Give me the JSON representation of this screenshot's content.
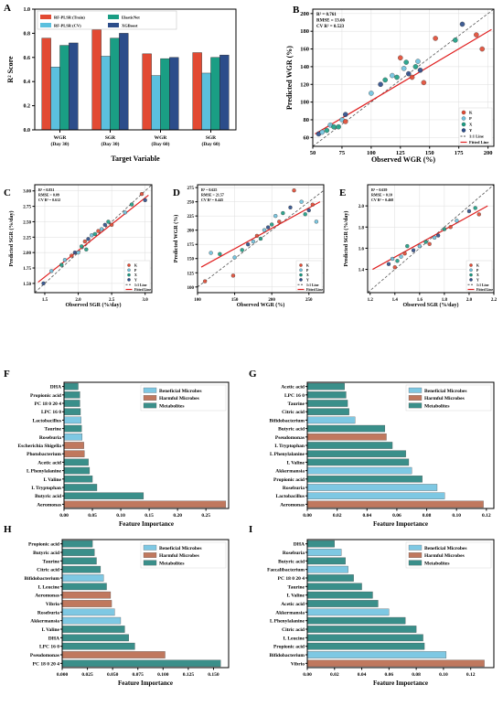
{
  "colors": {
    "rf_train": "#e24a33",
    "rf_cv": "#5bc0de",
    "elastic": "#1a9e84",
    "xgb": "#2c4d8a",
    "beneficial": "#7ec8e3",
    "harmful": "#c0785e",
    "metabolites": "#3a8f8a",
    "fit_line": "#e02020",
    "one_to_one": "#555555",
    "pt_K": "#e24a33",
    "pt_P": "#6fc3df",
    "pt_X": "#1a9e84",
    "pt_Y": "#2c4d8a"
  },
  "chart_data": [
    {
      "panel": "A",
      "type": "bar",
      "xlabel": "Target Variable",
      "ylabel": "R² Score",
      "ylim": [
        0,
        1.0
      ],
      "yticks": [
        "0.0",
        "0.2",
        "0.4",
        "0.6",
        "0.8",
        "1.0"
      ],
      "categories": [
        "WGR\n(Day 30)",
        "SGR\n(Day 30)",
        "WGR\n(Day 60)",
        "SGR\n(Day 60)"
      ],
      "category_lines": [
        [
          "WGR",
          "(Day 30)"
        ],
        [
          "SGR",
          "(Day 30)"
        ],
        [
          "WGR",
          "(Day 60)"
        ],
        [
          "SGR",
          "(Day 60)"
        ]
      ],
      "series": [
        {
          "name": "RF-PLSR (Train)",
          "values": [
            0.76,
            0.83,
            0.63,
            0.64
          ]
        },
        {
          "name": "RF-PLSR (CV)",
          "values": [
            0.52,
            0.61,
            0.45,
            0.47
          ]
        },
        {
          "name": "ElasticNet",
          "values": [
            0.7,
            0.76,
            0.59,
            0.6
          ]
        },
        {
          "name": "XGBoost",
          "values": [
            0.72,
            0.8,
            0.6,
            0.62
          ]
        }
      ]
    },
    {
      "panel": "B",
      "type": "scatter",
      "xlabel": "Observed WGR (%)",
      "ylabel": "Predicted WGR (%)",
      "xlim": [
        50,
        205
      ],
      "ylim": [
        50,
        205
      ],
      "xticks": [
        50,
        75,
        100,
        125,
        150,
        175,
        200
      ],
      "yticks": [
        60,
        80,
        100,
        120,
        140,
        160,
        180,
        200
      ],
      "stats": [
        "R² = 0.761",
        "RMSE = 13.66",
        "CV R² = 0.523"
      ],
      "legend": [
        "K",
        "P",
        "X",
        "Y",
        "1:1 Line",
        "Fitted Line"
      ],
      "fit": [
        [
          52,
          64
        ],
        [
          203,
          182
        ]
      ],
      "points": [
        [
          55,
          64,
          "Y"
        ],
        [
          58,
          66,
          "P"
        ],
        [
          62,
          68,
          "X"
        ],
        [
          65,
          74,
          "P"
        ],
        [
          68,
          72,
          "X"
        ],
        [
          72,
          72,
          "X"
        ],
        [
          75,
          80,
          "P"
        ],
        [
          78,
          86,
          "Y"
        ],
        [
          78,
          78,
          "K"
        ],
        [
          100,
          110,
          "P"
        ],
        [
          108,
          120,
          "Y"
        ],
        [
          112,
          125,
          "X"
        ],
        [
          118,
          130,
          "P"
        ],
        [
          122,
          128,
          "X"
        ],
        [
          125,
          150,
          "K"
        ],
        [
          128,
          138,
          "P"
        ],
        [
          130,
          145,
          "X"
        ],
        [
          132,
          132,
          "Y"
        ],
        [
          135,
          128,
          "K"
        ],
        [
          138,
          140,
          "X"
        ],
        [
          140,
          146,
          "P"
        ],
        [
          142,
          136,
          "Y"
        ],
        [
          145,
          122,
          "K"
        ],
        [
          155,
          172,
          "K"
        ],
        [
          172,
          170,
          "X"
        ],
        [
          190,
          176,
          "K"
        ],
        [
          195,
          160,
          "K"
        ],
        [
          178,
          188,
          "Y"
        ]
      ]
    },
    {
      "panel": "C",
      "type": "scatter",
      "xlabel": "Observed SGR (%/day)",
      "ylabel": "Predicted SGR (%/day)",
      "xlim": [
        1.35,
        3.1
      ],
      "ylim": [
        1.35,
        3.1
      ],
      "xticks": [
        "1.5",
        "2.0",
        "2.5",
        "3.0"
      ],
      "yticks": [
        "1.50",
        "1.75",
        "2.00",
        "2.25",
        "2.50",
        "2.75",
        "3.00"
      ],
      "stats": [
        "R² = 0.831",
        "RMSE = 0.09",
        "CV R² = 0.612"
      ],
      "legend": [
        "K",
        "P",
        "X",
        "Y",
        "1:1 Line",
        "Fitted Line"
      ],
      "fit": [
        [
          1.4,
          1.52
        ],
        [
          3.05,
          2.93
        ]
      ],
      "points": [
        [
          1.48,
          1.5,
          "Y"
        ],
        [
          1.6,
          1.7,
          "P"
        ],
        [
          1.75,
          1.8,
          "X"
        ],
        [
          1.8,
          1.88,
          "P"
        ],
        [
          1.9,
          1.95,
          "K"
        ],
        [
          1.95,
          2.0,
          "Y"
        ],
        [
          2.0,
          2.0,
          "P"
        ],
        [
          2.05,
          2.1,
          "X"
        ],
        [
          2.1,
          2.18,
          "K"
        ],
        [
          2.12,
          2.05,
          "X"
        ],
        [
          2.15,
          2.22,
          "Y"
        ],
        [
          2.2,
          2.28,
          "P"
        ],
        [
          2.25,
          2.3,
          "X"
        ],
        [
          2.3,
          2.35,
          "K"
        ],
        [
          2.35,
          2.38,
          "P"
        ],
        [
          2.4,
          2.45,
          "Y"
        ],
        [
          2.45,
          2.5,
          "X"
        ],
        [
          2.5,
          2.45,
          "K"
        ],
        [
          2.7,
          2.65,
          "P"
        ],
        [
          2.8,
          2.78,
          "X"
        ],
        [
          2.95,
          2.95,
          "K"
        ],
        [
          3.0,
          2.85,
          "Y"
        ]
      ]
    },
    {
      "panel": "D",
      "type": "scatter",
      "xlabel": "Observed WGR (%)",
      "ylabel": "Predicted WGR (%)",
      "xlim": [
        100,
        270
      ],
      "ylim": [
        90,
        280
      ],
      "xticks": [
        100,
        150,
        200,
        250
      ],
      "yticks": [
        100,
        125,
        150,
        175,
        200,
        225,
        250,
        275
      ],
      "stats": [
        "R² = 0.625",
        "RMSE = 21.57",
        "CV R² = 0.445"
      ],
      "legend": [
        "K",
        "P",
        "X",
        "Y",
        "1:1 Line",
        "Fitted Line"
      ],
      "fit": [
        [
          105,
          135
        ],
        [
          265,
          250
        ]
      ],
      "points": [
        [
          110,
          110,
          "K"
        ],
        [
          118,
          160,
          "P"
        ],
        [
          130,
          158,
          "X"
        ],
        [
          148,
          120,
          "K"
        ],
        [
          150,
          152,
          "P"
        ],
        [
          160,
          165,
          "X"
        ],
        [
          168,
          175,
          "Y"
        ],
        [
          175,
          180,
          "P"
        ],
        [
          180,
          190,
          "K"
        ],
        [
          185,
          185,
          "X"
        ],
        [
          190,
          200,
          "P"
        ],
        [
          195,
          205,
          "Y"
        ],
        [
          200,
          210,
          "X"
        ],
        [
          205,
          225,
          "P"
        ],
        [
          210,
          215,
          "K"
        ],
        [
          215,
          230,
          "X"
        ],
        [
          225,
          240,
          "Y"
        ],
        [
          230,
          270,
          "K"
        ],
        [
          240,
          250,
          "P"
        ],
        [
          245,
          228,
          "X"
        ],
        [
          250,
          235,
          "Y"
        ],
        [
          255,
          245,
          "K"
        ],
        [
          260,
          215,
          "P"
        ]
      ]
    },
    {
      "panel": "E",
      "type": "scatter",
      "xlabel": "Observed SGR (%/day)",
      "ylabel": "Predicted SGR (%/day)",
      "xlim": [
        1.18,
        2.2
      ],
      "ylim": [
        1.18,
        2.2
      ],
      "xticks": [
        "1.2",
        "1.4",
        "1.6",
        "1.8",
        "2.0",
        "2.2"
      ],
      "yticks": [
        "1.4",
        "1.6",
        "1.8",
        "2.0"
      ],
      "stats": [
        "R² = 0.639",
        "RMSE = 0.10",
        "CV R² = 0.468"
      ],
      "legend": [
        "K",
        "P",
        "X",
        "Y",
        "1:1 Line",
        "Fitted Line"
      ],
      "fit": [
        [
          1.22,
          1.4
        ],
        [
          2.15,
          2.0
        ]
      ],
      "points": [
        [
          1.35,
          1.45,
          "Y"
        ],
        [
          1.38,
          1.5,
          "P"
        ],
        [
          1.4,
          1.42,
          "K"
        ],
        [
          1.42,
          1.48,
          "X"
        ],
        [
          1.45,
          1.52,
          "P"
        ],
        [
          1.48,
          1.55,
          "K"
        ],
        [
          1.5,
          1.62,
          "X"
        ],
        [
          1.55,
          1.58,
          "Y"
        ],
        [
          1.6,
          1.62,
          "P"
        ],
        [
          1.65,
          1.66,
          "X"
        ],
        [
          1.68,
          1.64,
          "K"
        ],
        [
          1.72,
          1.7,
          "P"
        ],
        [
          1.75,
          1.72,
          "Y"
        ],
        [
          1.8,
          1.78,
          "X"
        ],
        [
          1.85,
          1.8,
          "K"
        ],
        [
          1.9,
          1.86,
          "P"
        ],
        [
          2.0,
          1.95,
          "Y"
        ],
        [
          2.05,
          1.98,
          "X"
        ],
        [
          2.08,
          1.92,
          "K"
        ]
      ]
    },
    {
      "panel": "F",
      "type": "bar",
      "orientation": "horizontal",
      "xlabel": "Feature Importance",
      "xlim": [
        0,
        0.29
      ],
      "xticks": [
        "0.00",
        "0.05",
        "0.10",
        "0.15",
        "0.20",
        "0.25"
      ],
      "legend": [
        "Beneficial Microbes",
        "Harmful Microbes",
        "Metabolites"
      ],
      "features": [
        {
          "name": "DHA",
          "value": 0.025,
          "cls": "M"
        },
        {
          "name": "Propionic acid",
          "value": 0.028,
          "cls": "M"
        },
        {
          "name": "PC 18 0 20 4",
          "value": 0.028,
          "cls": "M"
        },
        {
          "name": "LPC 16 0",
          "value": 0.029,
          "cls": "M"
        },
        {
          "name": "Lactobacillus",
          "value": 0.03,
          "cls": "B"
        },
        {
          "name": "Taurine",
          "value": 0.031,
          "cls": "M"
        },
        {
          "name": "Roseburia",
          "value": 0.032,
          "cls": "B"
        },
        {
          "name": "Escherichia Shigella",
          "value": 0.035,
          "cls": "H"
        },
        {
          "name": "Photobacterium",
          "value": 0.036,
          "cls": "H"
        },
        {
          "name": "Acetic acid",
          "value": 0.043,
          "cls": "M"
        },
        {
          "name": "L Phenylalanine",
          "value": 0.045,
          "cls": "M"
        },
        {
          "name": "L Valine",
          "value": 0.05,
          "cls": "M"
        },
        {
          "name": "L Tryptophan",
          "value": 0.058,
          "cls": "M"
        },
        {
          "name": "Butyric acid",
          "value": 0.14,
          "cls": "M"
        },
        {
          "name": "Aeromonas",
          "value": 0.285,
          "cls": "H"
        }
      ]
    },
    {
      "panel": "G",
      "type": "bar",
      "orientation": "horizontal",
      "xlabel": "Feature Importance",
      "xlim": [
        0,
        0.125
      ],
      "xticks": [
        "0.00",
        "0.02",
        "0.04",
        "0.06",
        "0.08",
        "0.10",
        "0.12"
      ],
      "legend": [
        "Beneficial Microbes",
        "Harmful Microbes",
        "Metabolites"
      ],
      "features": [
        {
          "name": "Acetic acid",
          "value": 0.025,
          "cls": "M"
        },
        {
          "name": "LPC 16 0",
          "value": 0.026,
          "cls": "M"
        },
        {
          "name": "Taurine",
          "value": 0.027,
          "cls": "M"
        },
        {
          "name": "Citric acid",
          "value": 0.028,
          "cls": "M"
        },
        {
          "name": "Bifidobacterium",
          "value": 0.032,
          "cls": "B"
        },
        {
          "name": "Butyric acid",
          "value": 0.052,
          "cls": "M"
        },
        {
          "name": "Pseudomonas",
          "value": 0.053,
          "cls": "H"
        },
        {
          "name": "L Tryptophan",
          "value": 0.057,
          "cls": "M"
        },
        {
          "name": "L Phenylalanine",
          "value": 0.066,
          "cls": "M"
        },
        {
          "name": "L Valine",
          "value": 0.068,
          "cls": "M"
        },
        {
          "name": "Akkermansia",
          "value": 0.07,
          "cls": "B"
        },
        {
          "name": "Propionic acid",
          "value": 0.077,
          "cls": "M"
        },
        {
          "name": "Roseburia",
          "value": 0.087,
          "cls": "B"
        },
        {
          "name": "Lactobacillus",
          "value": 0.092,
          "cls": "B"
        },
        {
          "name": "Aeromonas",
          "value": 0.118,
          "cls": "H"
        }
      ]
    },
    {
      "panel": "H",
      "type": "bar",
      "orientation": "horizontal",
      "xlabel": "Feature Importance",
      "xlim": [
        0,
        0.165
      ],
      "xticks": [
        "0.000",
        "0.025",
        "0.050",
        "0.075",
        "0.100",
        "0.125",
        "0.150"
      ],
      "legend": [
        "Beneficial Microbes",
        "Harmful Microbes",
        "Metabolites"
      ],
      "features": [
        {
          "name": "Propionic acid",
          "value": 0.03,
          "cls": "M"
        },
        {
          "name": "Butyric acid",
          "value": 0.032,
          "cls": "M"
        },
        {
          "name": "Taurine",
          "value": 0.034,
          "cls": "M"
        },
        {
          "name": "Citric acid",
          "value": 0.038,
          "cls": "M"
        },
        {
          "name": "Bifidobacterium",
          "value": 0.041,
          "cls": "B"
        },
        {
          "name": "L Leucine",
          "value": 0.044,
          "cls": "M"
        },
        {
          "name": "Aeromonas",
          "value": 0.048,
          "cls": "H"
        },
        {
          "name": "Vibrio",
          "value": 0.049,
          "cls": "H"
        },
        {
          "name": "Roseburia",
          "value": 0.052,
          "cls": "B"
        },
        {
          "name": "Akkermansia",
          "value": 0.058,
          "cls": "B"
        },
        {
          "name": "L Valine",
          "value": 0.062,
          "cls": "M"
        },
        {
          "name": "DHA",
          "value": 0.066,
          "cls": "M"
        },
        {
          "name": "LPC 16 0",
          "value": 0.072,
          "cls": "M"
        },
        {
          "name": "Pseudomonas",
          "value": 0.102,
          "cls": "H"
        },
        {
          "name": "PC 18 0 20 4",
          "value": 0.157,
          "cls": "M"
        }
      ]
    },
    {
      "panel": "I",
      "type": "bar",
      "orientation": "horizontal",
      "xlabel": "Feature Importance",
      "xlim": [
        0,
        0.137
      ],
      "xticks": [
        "0.00",
        "0.02",
        "0.04",
        "0.06",
        "0.08",
        "0.10",
        "0.12"
      ],
      "legend": [
        "Beneficial Microbes",
        "Harmful Microbes",
        "Metabolites"
      ],
      "features": [
        {
          "name": "DHA",
          "value": 0.02,
          "cls": "M"
        },
        {
          "name": "Roseburia",
          "value": 0.025,
          "cls": "B"
        },
        {
          "name": "Butyric acid",
          "value": 0.028,
          "cls": "M"
        },
        {
          "name": "Faecalibacterium",
          "value": 0.03,
          "cls": "B"
        },
        {
          "name": "PC 18 0 20 4",
          "value": 0.034,
          "cls": "M"
        },
        {
          "name": "Taurine",
          "value": 0.04,
          "cls": "M"
        },
        {
          "name": "L Valine",
          "value": 0.048,
          "cls": "M"
        },
        {
          "name": "Acetic acid",
          "value": 0.052,
          "cls": "M"
        },
        {
          "name": "Akkermansia",
          "value": 0.06,
          "cls": "B"
        },
        {
          "name": "L Phenylalanine",
          "value": 0.072,
          "cls": "M"
        },
        {
          "name": "Citric acid",
          "value": 0.08,
          "cls": "M"
        },
        {
          "name": "L Leucine",
          "value": 0.085,
          "cls": "M"
        },
        {
          "name": "Propionic acid",
          "value": 0.086,
          "cls": "M"
        },
        {
          "name": "Bifidobacterium",
          "value": 0.102,
          "cls": "B"
        },
        {
          "name": "Vibrio",
          "value": 0.13,
          "cls": "H"
        }
      ]
    }
  ]
}
